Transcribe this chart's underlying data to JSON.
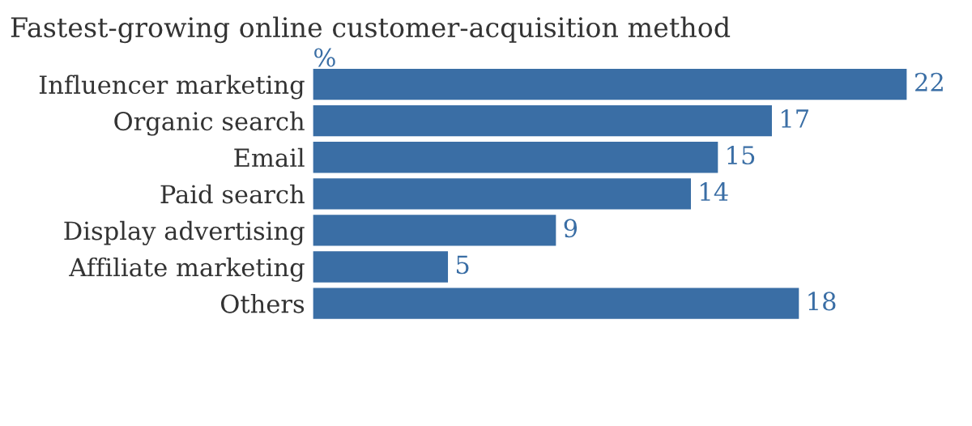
{
  "chart_data": {
    "type": "bar",
    "orientation": "horizontal",
    "title": "Fastest-growing online customer-acquisition method",
    "categories": [
      "Influencer marketing",
      "Organic search",
      "Email",
      "Paid search",
      "Display advertising",
      "Affiliate marketing",
      "Others"
    ],
    "values": [
      22,
      17,
      15,
      14,
      9,
      5,
      18
    ],
    "color": "#3a6ea5",
    "data_labels": true,
    "annotations": [
      "%"
    ]
  }
}
